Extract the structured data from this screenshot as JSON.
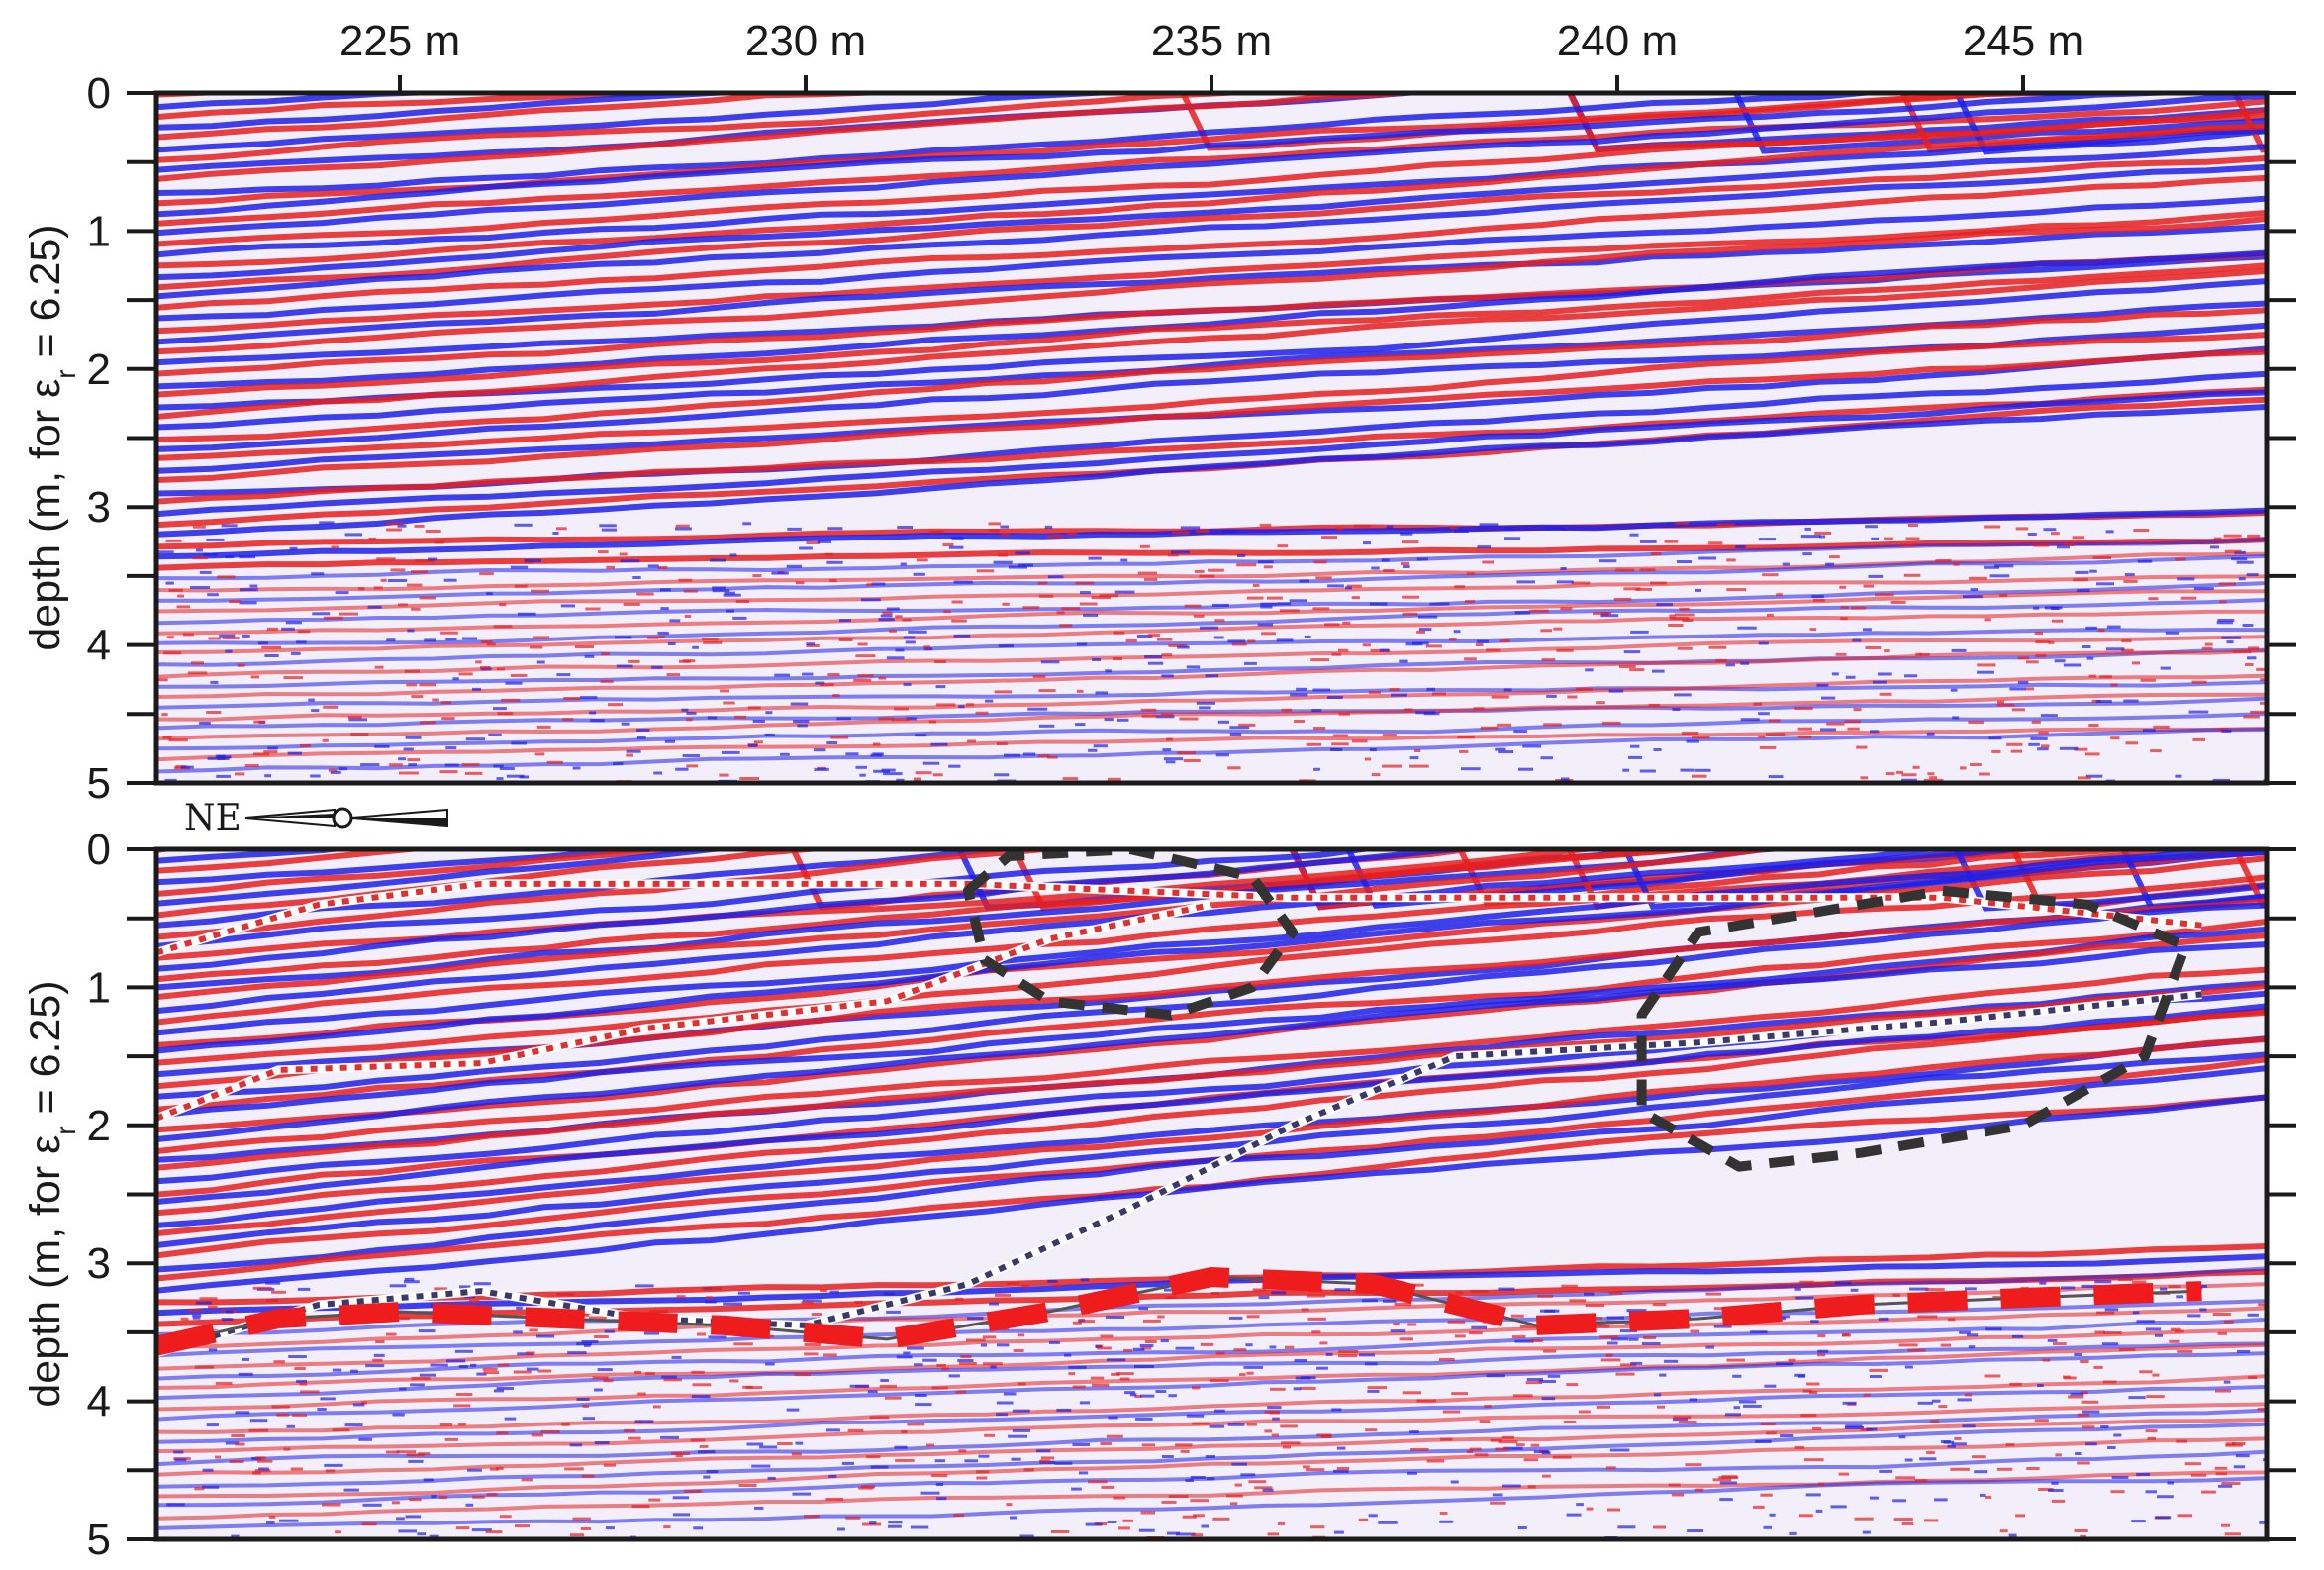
{
  "chart_data": [
    {
      "type": "heatmap",
      "panel": "top",
      "title": "",
      "description_type": "GPR radargram (unannotated)",
      "xaxis": {
        "position": "top",
        "unit": "m",
        "range": [
          222,
          248
        ],
        "ticks": [
          {
            "value": 225,
            "label": "225 m"
          },
          {
            "value": 230,
            "label": "230 m"
          },
          {
            "value": 235,
            "label": "235 m"
          },
          {
            "value": 240,
            "label": "240 m"
          },
          {
            "value": 245,
            "label": "245 m"
          }
        ]
      },
      "yaxis": {
        "label_prefix": "depth (m, for ε",
        "label_sub": "r",
        "label_suffix": " = 6.25)",
        "range": [
          0,
          5
        ],
        "inverted": true,
        "ticks": [
          0,
          1,
          2,
          3,
          4,
          5
        ],
        "minor_ticks": [
          0.5,
          1.5,
          2.5,
          3.5,
          4.5
        ]
      },
      "colormap": {
        "negative": "#1f1fe6",
        "zero": "#ffffff",
        "positive": "#e61f1f"
      },
      "grid": false
    },
    {
      "type": "heatmap",
      "panel": "bottom",
      "title": "",
      "description_type": "GPR radargram (interpreted)",
      "xaxis": {
        "range": [
          222,
          248
        ],
        "shared_with": "top"
      },
      "yaxis": {
        "label_prefix": "depth (m, for ε",
        "label_sub": "r",
        "label_suffix": " = 6.25)",
        "range": [
          0,
          5
        ],
        "inverted": true,
        "ticks": [
          0,
          1,
          2,
          3,
          4,
          5
        ],
        "minor_ticks": [
          0.5,
          1.5,
          2.5,
          3.5,
          4.5
        ]
      },
      "compass": {
        "label": "NE",
        "direction": "left"
      },
      "colormap": {
        "negative": "#1f1fe6",
        "zero": "#ffffff",
        "positive": "#e61f1f"
      },
      "interpretation_lines": [
        {
          "name": "upper-reflector-1",
          "style": "white-red-dotted",
          "points": [
            [
              222,
              0.75
            ],
            [
              224,
              0.4
            ],
            [
              226,
              0.25
            ],
            [
              229,
              0.25
            ],
            [
              232,
              0.25
            ],
            [
              236,
              0.35
            ],
            [
              240,
              0.35
            ],
            [
              244,
              0.35
            ],
            [
              247.2,
              0.55
            ]
          ]
        },
        {
          "name": "upper-reflector-2",
          "style": "white-red-dotted",
          "points": [
            [
              222,
              1.95
            ],
            [
              223.5,
              1.6
            ],
            [
              226,
              1.55
            ],
            [
              228,
              1.3
            ],
            [
              231,
              1.1
            ],
            [
              233,
              0.65
            ],
            [
              235,
              0.4
            ]
          ]
        },
        {
          "name": "middle-reflector",
          "style": "white-blue-dotted",
          "points": [
            [
              222,
              3.65
            ],
            [
              224,
              3.3
            ],
            [
              226,
              3.2
            ],
            [
              228,
              3.4
            ],
            [
              230,
              3.45
            ],
            [
              232,
              3.15
            ],
            [
              234,
              2.6
            ],
            [
              236,
              2.0
            ],
            [
              238,
              1.5
            ],
            [
              241,
              1.4
            ],
            [
              244,
              1.25
            ],
            [
              247.2,
              1.05
            ]
          ]
        },
        {
          "name": "basal-reflector",
          "style": "red-dashed",
          "points": [
            [
              222,
              3.6
            ],
            [
              223.5,
              3.4
            ],
            [
              225,
              3.35
            ],
            [
              227,
              3.4
            ],
            [
              229,
              3.45
            ],
            [
              231,
              3.55
            ],
            [
              233,
              3.35
            ],
            [
              235,
              3.1
            ],
            [
              237,
              3.15
            ],
            [
              239,
              3.45
            ],
            [
              241,
              3.4
            ],
            [
              243,
              3.3
            ],
            [
              245,
              3.25
            ],
            [
              247.2,
              3.2
            ]
          ]
        }
      ],
      "zones": [
        {
          "name": "zone-1",
          "style": "black-dashed-outline",
          "points": [
            [
              232,
              0.3
            ],
            [
              232.5,
              0.05
            ],
            [
              234,
              0.0
            ],
            [
              235.5,
              0.2
            ],
            [
              236,
              0.6
            ],
            [
              235.5,
              1.0
            ],
            [
              234.5,
              1.2
            ],
            [
              233,
              1.1
            ],
            [
              232.2,
              0.8
            ],
            [
              232,
              0.3
            ]
          ]
        },
        {
          "name": "zone-2",
          "style": "black-dashed-outline",
          "points": [
            [
              240.3,
              1.2
            ],
            [
              241,
              0.6
            ],
            [
              242.5,
              0.45
            ],
            [
              244,
              0.3
            ],
            [
              245.8,
              0.4
            ],
            [
              247,
              0.7
            ],
            [
              246.5,
              1.5
            ],
            [
              245,
              2.0
            ],
            [
              243,
              2.2
            ],
            [
              241.5,
              2.3
            ],
            [
              240.3,
              1.9
            ],
            [
              240.3,
              1.2
            ]
          ]
        }
      ],
      "grid": false
    }
  ]
}
